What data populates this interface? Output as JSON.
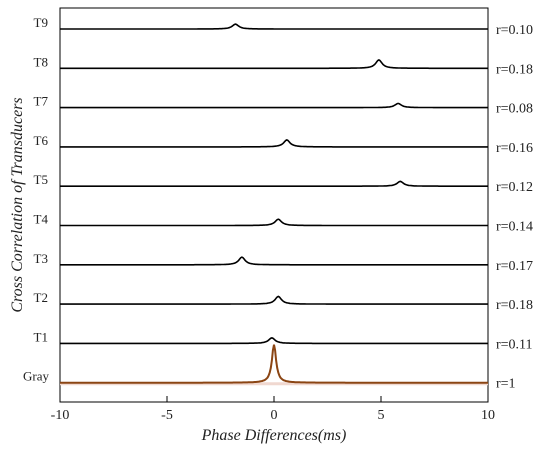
{
  "chart_data": {
    "type": "line",
    "title": "",
    "xlabel": "Phase Differences(ms)",
    "ylabel": "Cross Correlation of Transducers",
    "xlim": [
      -10,
      10
    ],
    "xticks": [
      "-10",
      "-5",
      "0",
      "5",
      "10"
    ],
    "grid": false,
    "series": [
      {
        "name": "T9",
        "r_label": "r=0.10",
        "peak_x": -1.8,
        "peak_height": 0.07,
        "color": "#000000"
      },
      {
        "name": "T8",
        "r_label": "r=0.18",
        "peak_x": 4.9,
        "peak_height": 0.12,
        "color": "#000000"
      },
      {
        "name": "T7",
        "r_label": "r=0.08",
        "peak_x": 5.8,
        "peak_height": 0.06,
        "color": "#000000"
      },
      {
        "name": "T6",
        "r_label": "r=0.16",
        "peak_x": 0.6,
        "peak_height": 0.1,
        "color": "#000000"
      },
      {
        "name": "T5",
        "r_label": "r=0.12",
        "peak_x": 5.9,
        "peak_height": 0.07,
        "color": "#000000"
      },
      {
        "name": "T4",
        "r_label": "r=0.14",
        "peak_x": 0.2,
        "peak_height": 0.09,
        "color": "#000000"
      },
      {
        "name": "T3",
        "r_label": "r=0.17",
        "peak_x": -1.5,
        "peak_height": 0.11,
        "color": "#000000"
      },
      {
        "name": "T2",
        "r_label": "r=0.18",
        "peak_x": 0.2,
        "peak_height": 0.11,
        "color": "#000000"
      },
      {
        "name": "T1",
        "r_label": "r=0.11",
        "peak_x": -0.1,
        "peak_height": 0.08,
        "color": "#000000"
      },
      {
        "name": "Gray",
        "r_label": "r=1",
        "peak_x": 0.0,
        "peak_height": 1.0,
        "color": "#8B4513",
        "label_color": "#C0392B"
      }
    ]
  }
}
